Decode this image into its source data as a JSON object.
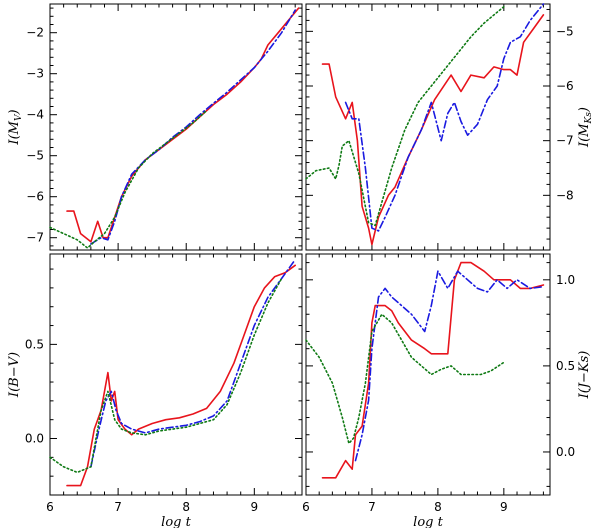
{
  "colors": {
    "red": "#e8141c",
    "blue": "#1a1ae0",
    "green": "#0f7a14"
  },
  "chart_data": [
    {
      "id": "mv",
      "type": "line",
      "ylabel": "I(M_V)",
      "ylabel_side": "left",
      "xlim": [
        6,
        9.7
      ],
      "ylim": [
        -1.3,
        -7.3
      ],
      "yticks": [
        -2,
        -3,
        -4,
        -5,
        -6,
        -7
      ],
      "ytick_labels": [
        "−2",
        "−3",
        "−4",
        "−5",
        "−6",
        "−7"
      ],
      "xticks": [
        6,
        7,
        8,
        9
      ],
      "series": [
        {
          "color": "red",
          "dash": "solid",
          "x": [
            6.25,
            6.35,
            6.45,
            6.6,
            6.7,
            6.78,
            6.85,
            6.95,
            7.05,
            7.2,
            7.4,
            7.6,
            7.8,
            8.0,
            8.2,
            8.4,
            8.6,
            8.8,
            9.0,
            9.1,
            9.2,
            9.35,
            9.5,
            9.65
          ],
          "y": [
            -6.35,
            -6.35,
            -6.9,
            -7.1,
            -6.6,
            -7.0,
            -7.0,
            -6.5,
            -6.0,
            -5.5,
            -5.1,
            -4.85,
            -4.6,
            -4.35,
            -4.05,
            -3.75,
            -3.5,
            -3.2,
            -2.85,
            -2.65,
            -2.3,
            -2.0,
            -1.7,
            -1.4
          ]
        },
        {
          "color": "blue",
          "dash": "dashdot",
          "x": [
            6.6,
            6.75,
            6.85,
            6.95,
            7.05,
            7.2,
            7.4,
            7.6,
            7.8,
            8.0,
            8.2,
            8.4,
            8.6,
            8.8,
            9.0,
            9.2,
            9.4,
            9.6
          ],
          "y": [
            -7.15,
            -7.0,
            -7.05,
            -6.6,
            -6.0,
            -5.45,
            -5.1,
            -4.85,
            -4.55,
            -4.3,
            -4.0,
            -3.72,
            -3.45,
            -3.15,
            -2.85,
            -2.45,
            -2.0,
            -1.45
          ]
        },
        {
          "color": "green",
          "dash": "dotted",
          "x": [
            6.0,
            6.2,
            6.4,
            6.55,
            6.65,
            6.8,
            6.95,
            7.1,
            7.3,
            7.5,
            7.7,
            7.9,
            8.1,
            8.3
          ],
          "y": [
            -6.75,
            -6.9,
            -7.05,
            -7.25,
            -7.1,
            -6.9,
            -6.5,
            -5.9,
            -5.3,
            -4.95,
            -4.7,
            -4.45,
            -4.2,
            -3.9
          ]
        }
      ]
    },
    {
      "id": "mk",
      "type": "line",
      "ylabel": "I(M_Ks)",
      "ylabel_side": "right",
      "xlim": [
        6,
        9.7
      ],
      "ylim": [
        -4.5,
        -9.0
      ],
      "yticks": [
        -5,
        -6,
        -7,
        -8
      ],
      "ytick_labels": [
        "−5",
        "−6",
        "−7",
        "−8"
      ],
      "xticks": [
        6,
        7,
        8,
        9
      ],
      "series": [
        {
          "color": "red",
          "dash": "solid",
          "x": [
            6.25,
            6.35,
            6.45,
            6.6,
            6.7,
            6.78,
            6.85,
            6.95,
            7.0,
            7.1,
            7.25,
            7.35,
            7.55,
            7.75,
            7.95,
            8.2,
            8.35,
            8.5,
            8.7,
            8.85,
            9.0,
            9.1,
            9.2,
            9.3,
            9.45,
            9.6
          ],
          "y": [
            -5.6,
            -5.6,
            -6.2,
            -6.6,
            -6.3,
            -7.0,
            -8.2,
            -8.6,
            -8.9,
            -8.4,
            -8.0,
            -7.85,
            -7.3,
            -6.8,
            -6.25,
            -5.8,
            -6.1,
            -5.8,
            -5.85,
            -5.65,
            -5.7,
            -5.7,
            -5.8,
            -5.2,
            -4.95,
            -4.7
          ]
        },
        {
          "color": "blue",
          "dash": "dashdot",
          "x": [
            6.6,
            6.7,
            6.8,
            6.9,
            7.0,
            7.1,
            7.2,
            7.35,
            7.55,
            7.75,
            7.9,
            8.05,
            8.15,
            8.25,
            8.35,
            8.45,
            8.6,
            8.75,
            8.9,
            9.0,
            9.1,
            9.25,
            9.4,
            9.6
          ],
          "y": [
            -6.3,
            -6.6,
            -6.6,
            -7.5,
            -8.6,
            -8.65,
            -8.4,
            -8.0,
            -7.3,
            -6.8,
            -6.3,
            -7.0,
            -6.5,
            -6.3,
            -6.65,
            -6.9,
            -6.7,
            -6.25,
            -6.0,
            -5.5,
            -5.2,
            -5.1,
            -4.8,
            -4.5
          ]
        },
        {
          "color": "green",
          "dash": "dotted",
          "x": [
            6.0,
            6.15,
            6.35,
            6.45,
            6.5,
            6.55,
            6.65,
            6.8,
            6.95,
            7.05,
            7.3,
            7.5,
            7.7,
            7.9,
            8.1,
            8.3,
            8.5,
            8.7,
            8.9,
            9.0
          ],
          "y": [
            -7.7,
            -7.55,
            -7.5,
            -7.7,
            -7.45,
            -7.1,
            -7.0,
            -7.6,
            -8.5,
            -8.55,
            -7.5,
            -6.8,
            -6.3,
            -6.0,
            -5.7,
            -5.4,
            -5.1,
            -4.85,
            -4.65,
            -4.55
          ]
        }
      ]
    },
    {
      "id": "bv",
      "type": "line",
      "ylabel": "I(B−V)",
      "ylabel_side": "left",
      "xlim": [
        6,
        9.7
      ],
      "ylim": [
        0.98,
        -0.3
      ],
      "yticks": [
        0.0,
        0.5
      ],
      "ytick_labels": [
        "0.0",
        "0.5"
      ],
      "xticks": [
        6,
        7,
        8,
        9
      ],
      "xtick_labels": [
        "6",
        "7",
        "8",
        "9"
      ],
      "xlabel": "log t",
      "series": [
        {
          "color": "red",
          "dash": "solid",
          "x": [
            6.25,
            6.45,
            6.55,
            6.65,
            6.75,
            6.85,
            6.9,
            6.95,
            7.0,
            7.1,
            7.2,
            7.3,
            7.5,
            7.7,
            7.9,
            8.1,
            8.3,
            8.5,
            8.7,
            8.85,
            9.0,
            9.15,
            9.3,
            9.45,
            9.6
          ],
          "y": [
            -0.25,
            -0.25,
            -0.15,
            0.05,
            0.15,
            0.35,
            0.2,
            0.25,
            0.1,
            0.05,
            0.02,
            0.05,
            0.08,
            0.1,
            0.11,
            0.13,
            0.16,
            0.25,
            0.4,
            0.55,
            0.7,
            0.8,
            0.86,
            0.88,
            0.92
          ]
        },
        {
          "color": "blue",
          "dash": "dashdot",
          "x": [
            6.6,
            6.72,
            6.82,
            6.9,
            6.97,
            7.05,
            7.2,
            7.4,
            7.6,
            7.8,
            8.0,
            8.2,
            8.4,
            8.6,
            8.8,
            9.0,
            9.2,
            9.4,
            9.6
          ],
          "y": [
            -0.15,
            0.05,
            0.2,
            0.25,
            0.15,
            0.08,
            0.05,
            0.03,
            0.05,
            0.06,
            0.07,
            0.09,
            0.12,
            0.2,
            0.4,
            0.6,
            0.75,
            0.85,
            0.95
          ]
        },
        {
          "color": "green",
          "dash": "dotted",
          "x": [
            6.0,
            6.2,
            6.4,
            6.6,
            6.75,
            6.85,
            6.95,
            7.05,
            7.2,
            7.4,
            7.6,
            7.8,
            8.0,
            8.2,
            8.4,
            8.6,
            8.8,
            9.0,
            9.2,
            9.4
          ],
          "y": [
            -0.1,
            -0.15,
            -0.18,
            -0.15,
            0.15,
            0.25,
            0.1,
            0.05,
            0.03,
            0.02,
            0.04,
            0.05,
            0.06,
            0.08,
            0.1,
            0.18,
            0.35,
            0.55,
            0.72,
            0.85
          ]
        }
      ]
    },
    {
      "id": "jk",
      "type": "line",
      "ylabel": "I(J−Ks)",
      "ylabel_side": "right",
      "xlim": [
        6,
        9.7
      ],
      "ylim": [
        1.15,
        -0.25
      ],
      "yticks": [
        0.0,
        0.5,
        1.0
      ],
      "ytick_labels": [
        "0.0",
        "0.5",
        "1.0"
      ],
      "xticks": [
        6,
        7,
        8,
        9
      ],
      "xtick_labels": [
        "6",
        "7",
        "8",
        "9"
      ],
      "xlabel": "log t",
      "series": [
        {
          "color": "red",
          "dash": "solid",
          "x": [
            6.25,
            6.45,
            6.6,
            6.7,
            6.75,
            6.85,
            6.95,
            7.0,
            7.05,
            7.1,
            7.2,
            7.3,
            7.4,
            7.6,
            7.8,
            7.9,
            8.05,
            8.15,
            8.25,
            8.35,
            8.5,
            8.7,
            8.85,
            9.0,
            9.1,
            9.25,
            9.4,
            9.6
          ],
          "y": [
            -0.15,
            -0.15,
            -0.05,
            -0.1,
            0.1,
            0.15,
            0.4,
            0.75,
            0.85,
            0.85,
            0.85,
            0.82,
            0.75,
            0.65,
            0.6,
            0.57,
            0.57,
            0.57,
            1.0,
            1.1,
            1.1,
            1.05,
            1.0,
            1.0,
            1.0,
            0.95,
            0.95,
            0.97
          ]
        },
        {
          "color": "blue",
          "dash": "dashdot",
          "x": [
            6.75,
            6.85,
            6.95,
            7.0,
            7.1,
            7.2,
            7.3,
            7.45,
            7.6,
            7.8,
            7.9,
            8.0,
            8.15,
            8.3,
            8.45,
            8.6,
            8.75,
            8.9,
            9.05,
            9.2,
            9.4,
            9.6
          ],
          "y": [
            -0.05,
            0.1,
            0.3,
            0.6,
            0.9,
            0.95,
            0.9,
            0.85,
            0.8,
            0.7,
            0.85,
            1.05,
            0.95,
            1.05,
            1.0,
            0.95,
            0.93,
            1.0,
            0.95,
            1.0,
            0.95,
            0.96
          ]
        },
        {
          "color": "green",
          "dash": "dotted",
          "x": [
            6.0,
            6.2,
            6.4,
            6.55,
            6.65,
            6.72,
            6.8,
            6.9,
            7.0,
            7.15,
            7.3,
            7.45,
            7.6,
            7.75,
            7.9,
            8.05,
            8.2,
            8.35,
            8.5,
            8.65,
            8.8,
            9.0
          ],
          "y": [
            0.65,
            0.55,
            0.4,
            0.2,
            0.05,
            0.08,
            0.2,
            0.4,
            0.7,
            0.8,
            0.75,
            0.65,
            0.55,
            0.5,
            0.45,
            0.48,
            0.5,
            0.45,
            0.45,
            0.45,
            0.47,
            0.52
          ]
        }
      ]
    }
  ]
}
